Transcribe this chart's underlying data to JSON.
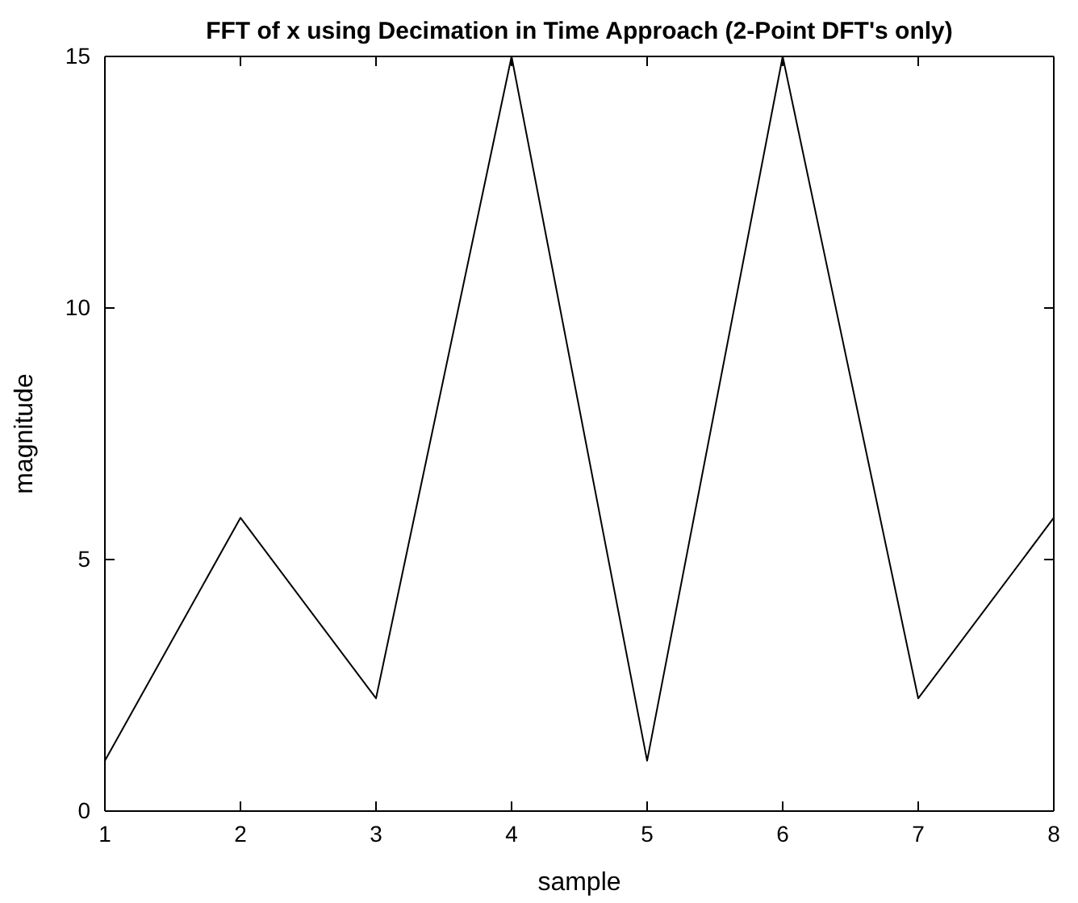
{
  "chart_data": {
    "type": "line",
    "title": "FFT of x using Decimation in Time Approach (2-Point DFT's only)",
    "xlabel": "sample",
    "ylabel": "magnitude",
    "x": [
      1,
      2,
      3,
      4,
      5,
      6,
      7,
      8
    ],
    "series": [
      {
        "color": "#000000",
        "values": [
          1,
          5.83,
          2.24,
          15,
          1,
          15,
          2.24,
          5.83
        ]
      }
    ],
    "xlim": [
      1,
      8
    ],
    "xticks": [
      1,
      2,
      3,
      4,
      5,
      6,
      7,
      8
    ],
    "ylim": [
      0,
      15
    ],
    "yticks": [
      0,
      5,
      10,
      15
    ],
    "grid": false,
    "marker": "none",
    "line_style": "solid"
  }
}
